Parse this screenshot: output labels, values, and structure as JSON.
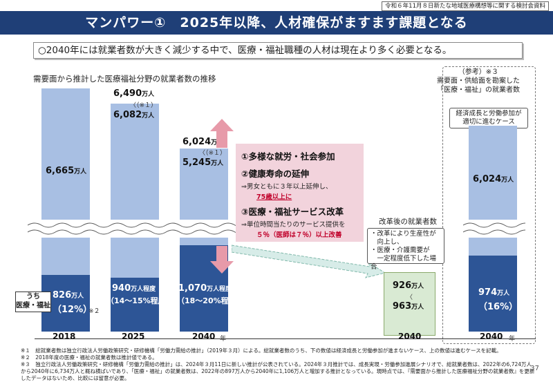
{
  "source_tag": "令和６年11月８日新たな地域医療構想等に関する検討会資料",
  "header": {
    "title": "マンパワー①　2025年以降、人材確保がますます課題となる"
  },
  "lead": "○2040年には就業者数が大きく減少する中で、医療・福祉職種の人材は現在より多く必要となる。",
  "subtitle": "需要面から推計した医療福祉分野の就業者数の推移",
  "reference": {
    "title_lines": [
      "（参考）※３",
      "需要面・供給面を勘案した",
      "「医療・福祉」の就業者数"
    ],
    "case_lines": [
      "経済成長と労働参加が",
      "適切に進むケース"
    ]
  },
  "bars": {
    "y2018": {
      "total": "6,665",
      "med": "826",
      "med_pct": "（12%）",
      "med_note": "※２"
    },
    "y2025": {
      "total_top": "6,490",
      "note": "〈（※１）",
      "total": "6,082",
      "med": "940",
      "med_suffix": "万人程度",
      "med_pct": "（14～15%程度）"
    },
    "y2040": {
      "total_top": "6,024",
      "note": "〈（※１）",
      "total": "5,245",
      "med": "1,070",
      "med_suffix": "万人程度",
      "med_pct": "（18～20%程度）"
    },
    "after": {
      "v1": "926",
      "tilde": "〈",
      "v2": "963"
    },
    "ref": {
      "total": "6,024",
      "med": "974",
      "med_pct": "（16%）"
    }
  },
  "unit": "万人",
  "reforms": {
    "r1": "①多様な就労・社会参加",
    "r2": "②健康寿命の延伸",
    "r2_sub1": "⇒男女ともに３年以上延伸し、",
    "r2_sub2": "75歳以上に",
    "r3": "③医療・福祉サービス改革",
    "r3_sub1": "⇒単位時間当たりのサービス提供を",
    "r3_sub2": "５％（医師は７％）以上改善"
  },
  "after_reform": {
    "title": "改革後の就業者数",
    "lines": [
      "・改革により生産性が",
      "　向上し、",
      "・医療・介護需要が",
      "　一定程度低下した場合"
    ]
  },
  "uchi_label": [
    "うち",
    "医療・福祉"
  ],
  "x_labels": [
    "2018",
    "2025",
    "2040",
    "2040",
    "2040"
  ],
  "x_unit": "年",
  "footnotes": [
    "※１　総就業者数は独立行政法人労働政策研究・研修機構「労働力需給の推計」（2019年３月）による。総就業者数のうち、下の数値は経済成長と労働参加が進まないケース、上の数値は進むケースを記載。",
    "※２　2018年度の医療・福祉の就業者数は推計値である。",
    "※３　独立行政法人労働政策研究・研修機構「労働力需給の推計」は、2024年３月11日に新しい推計が公表されている。2024年３月推計では、成長実現・労働参加進展シナリオで、総就業者数は、2022年の6,724万人から2040年に6,734万人と概ね横ばいであり、「医療・福祉」の就業者数は、2022年の897万人から2040年に1,106万人と増加する推計となっている。現時点では、『需要面から推計した医療福祉分野の就業者数』を更新したデータはないため、比較には留意が必要。"
  ],
  "page_number": "37",
  "colors": {
    "header": "#1f3f77",
    "upper": "#a8bfe3",
    "lower": "#2d5596",
    "pink": "#f2d3dc",
    "green": "#d9ead3",
    "red": "#c0002a"
  }
}
